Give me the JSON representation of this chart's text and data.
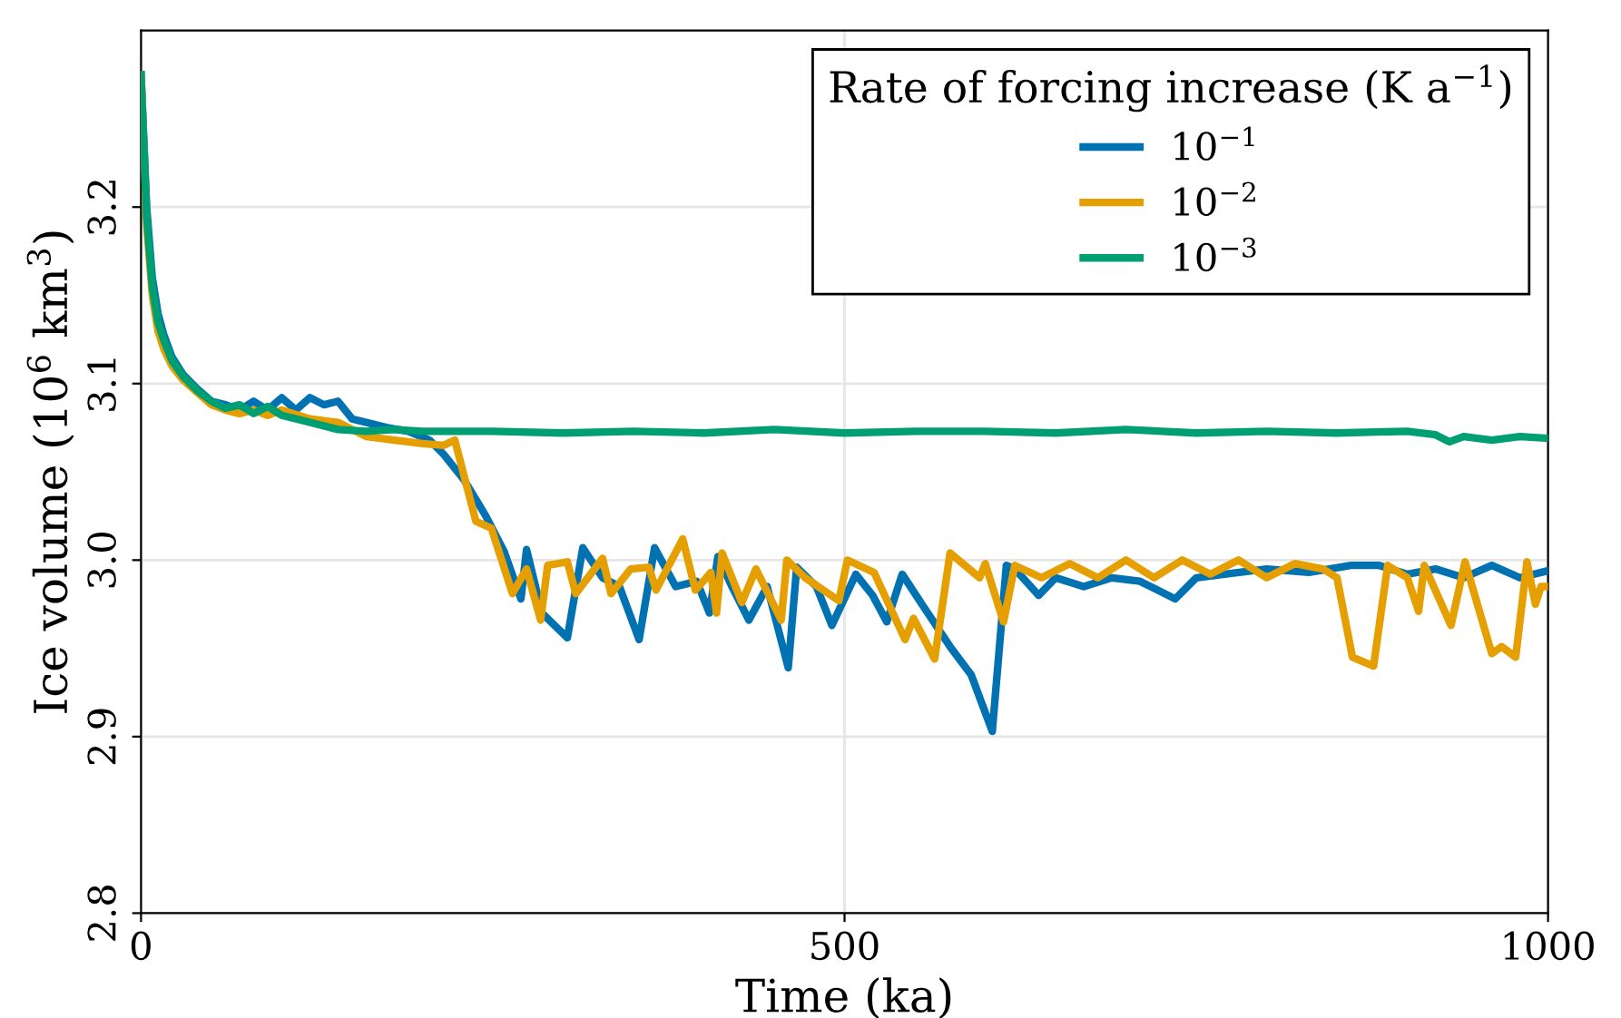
{
  "chart_data": {
    "type": "line",
    "xlabel": "Time (ka)",
    "ylabel": "Ice volume (10$^{6}$ km$^{3}$)",
    "legend_title": "Rate of forcing increase (K a$^{−1}$)",
    "xlim": [
      0,
      1000
    ],
    "ylim": [
      2.8,
      3.3
    ],
    "xticks": [
      0,
      500,
      1000
    ],
    "yticks": [
      2.8,
      2.9,
      {
        "value": 3.0,
        "label": "3.0"
      },
      3.1,
      3.2
    ],
    "grid": true,
    "legend": "top right",
    "line_style": "solid",
    "series": [
      {
        "name": "10$^{−1}$",
        "color": "#0072b2",
        "x": [
          0,
          4,
          8,
          12,
          16,
          22,
          30,
          40,
          50,
          60,
          70,
          80,
          90,
          100,
          110,
          120,
          130,
          140,
          150,
          160,
          175,
          190,
          205,
          215,
          230,
          245,
          258,
          270,
          274,
          285,
          303,
          314,
          328,
          340,
          354,
          365,
          380,
          395,
          404,
          410,
          420,
          432,
          445,
          460,
          466,
          480,
          491,
          508,
          520,
          530,
          541,
          555,
          575,
          590,
          605,
          615,
          621,
          638,
          650,
          670,
          690,
          710,
          735,
          750,
          770,
          800,
          830,
          860,
          880,
          900,
          920,
          940,
          960,
          980,
          1000
        ],
        "values": [
          3.275,
          3.2,
          3.16,
          3.14,
          3.128,
          3.115,
          3.105,
          3.097,
          3.09,
          3.088,
          3.085,
          3.09,
          3.085,
          3.092,
          3.085,
          3.092,
          3.088,
          3.09,
          3.08,
          3.078,
          3.075,
          3.073,
          3.068,
          3.06,
          3.045,
          3.025,
          3.005,
          2.978,
          3.006,
          2.97,
          2.956,
          3.007,
          2.99,
          2.985,
          2.955,
          3.007,
          2.985,
          2.988,
          2.97,
          3.002,
          2.985,
          2.966,
          2.985,
          2.939,
          2.996,
          2.985,
          2.963,
          2.992,
          2.98,
          2.965,
          2.992,
          2.975,
          2.951,
          2.935,
          2.903,
          2.997,
          2.995,
          2.98,
          2.99,
          2.985,
          2.99,
          2.988,
          2.978,
          2.99,
          2.992,
          2.995,
          2.993,
          2.997,
          2.997,
          2.992,
          2.995,
          2.99,
          2.997,
          2.99,
          2.994
        ]
      },
      {
        "name": "10$^{−2}$",
        "color": "#e69f00",
        "x": [
          0,
          4,
          8,
          12,
          16,
          22,
          30,
          40,
          50,
          60,
          70,
          80,
          90,
          100,
          120,
          140,
          160,
          180,
          200,
          215,
          223,
          238,
          249,
          264,
          274,
          284,
          289,
          303,
          309,
          328,
          334,
          348,
          361,
          366,
          385,
          394,
          405,
          409,
          413,
          427,
          437,
          455,
          459,
          472,
          496,
          502,
          521,
          543,
          549,
          564,
          575,
          596,
          600,
          613,
          621,
          640,
          660,
          680,
          700,
          720,
          740,
          760,
          780,
          800,
          820,
          840,
          850,
          861,
          876,
          886,
          900,
          908,
          912,
          931,
          941,
          960,
          967,
          977,
          985,
          991,
          995,
          1000
        ],
        "values": [
          3.275,
          3.19,
          3.15,
          3.13,
          3.12,
          3.11,
          3.102,
          3.095,
          3.088,
          3.085,
          3.083,
          3.085,
          3.082,
          3.085,
          3.08,
          3.078,
          3.07,
          3.068,
          3.066,
          3.065,
          3.068,
          3.022,
          3.018,
          2.981,
          2.995,
          2.966,
          2.997,
          2.999,
          2.981,
          3.001,
          2.981,
          2.995,
          2.996,
          2.983,
          3.012,
          2.983,
          2.993,
          2.97,
          3.004,
          2.976,
          2.995,
          2.966,
          3.0,
          2.99,
          2.977,
          3.0,
          2.993,
          2.955,
          2.967,
          2.944,
          3.004,
          2.99,
          2.998,
          2.965,
          2.997,
          2.99,
          2.998,
          2.99,
          3.0,
          2.99,
          3.0,
          2.992,
          3.0,
          2.99,
          2.998,
          2.995,
          2.99,
          2.945,
          2.94,
          2.997,
          2.99,
          2.971,
          2.997,
          2.963,
          2.999,
          2.947,
          2.951,
          2.945,
          2.999,
          2.975,
          2.985,
          2.985
        ]
      },
      {
        "name": "10$^{−3}$",
        "color": "#009e73",
        "x": [
          0,
          4,
          8,
          12,
          16,
          22,
          30,
          40,
          50,
          60,
          70,
          80,
          90,
          100,
          120,
          140,
          160,
          180,
          200,
          250,
          300,
          350,
          400,
          450,
          500,
          550,
          600,
          650,
          700,
          750,
          800,
          850,
          900,
          920,
          930,
          940,
          960,
          980,
          1000
        ],
        "values": [
          3.275,
          3.195,
          3.155,
          3.135,
          3.125,
          3.113,
          3.104,
          3.096,
          3.09,
          3.086,
          3.088,
          3.083,
          3.087,
          3.082,
          3.078,
          3.074,
          3.073,
          3.074,
          3.073,
          3.073,
          3.072,
          3.073,
          3.072,
          3.074,
          3.072,
          3.073,
          3.073,
          3.072,
          3.074,
          3.072,
          3.073,
          3.072,
          3.073,
          3.071,
          3.067,
          3.07,
          3.068,
          3.07,
          3.069
        ]
      }
    ]
  }
}
